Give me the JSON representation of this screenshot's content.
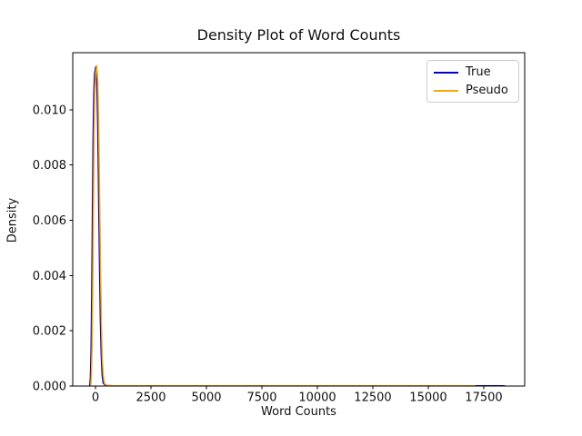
{
  "figure": {
    "background": "#ffffff",
    "frame_color": "#000000"
  },
  "chart_data": {
    "type": "line",
    "subtype": "kde-density",
    "title": "Density Plot of Word Counts",
    "xlabel": "Word Counts",
    "ylabel": "Density",
    "xlim": [
      -1025,
      19345
    ],
    "ylim": [
      0,
      0.012066
    ],
    "grid": false,
    "legend": {
      "position": "upper right",
      "entries": [
        "True",
        "Pseudo"
      ]
    },
    "x_ticks": [
      {
        "value": 0,
        "label": "0"
      },
      {
        "value": 2500,
        "label": "2500"
      },
      {
        "value": 5000,
        "label": "5000"
      },
      {
        "value": 7500,
        "label": "7500"
      },
      {
        "value": 10000,
        "label": "10000"
      },
      {
        "value": 12500,
        "label": "12500"
      },
      {
        "value": 15000,
        "label": "15000"
      },
      {
        "value": 17500,
        "label": "17500"
      }
    ],
    "y_ticks": [
      {
        "value": 0.0,
        "label": "0.000"
      },
      {
        "value": 0.002,
        "label": "0.002"
      },
      {
        "value": 0.004,
        "label": "0.004"
      },
      {
        "value": 0.006,
        "label": "0.006"
      },
      {
        "value": 0.008,
        "label": "0.008"
      },
      {
        "value": 0.01,
        "label": "0.010"
      }
    ],
    "series": [
      {
        "name": "True",
        "color": "#0000cd",
        "peak": {
          "x": 10,
          "y": 0.01155
        },
        "x_end": 18450,
        "points": [
          [
            -260,
            0.0
          ],
          [
            -230,
            0.0003
          ],
          [
            -200,
            0.0012
          ],
          [
            -170,
            0.0032
          ],
          [
            -140,
            0.006
          ],
          [
            -110,
            0.0088
          ],
          [
            -75,
            0.0106
          ],
          [
            -40,
            0.0113
          ],
          [
            10,
            0.01155
          ],
          [
            60,
            0.011
          ],
          [
            100,
            0.0095
          ],
          [
            140,
            0.007
          ],
          [
            180,
            0.0045
          ],
          [
            220,
            0.0024
          ],
          [
            260,
            0.0011
          ],
          [
            300,
            0.0004
          ],
          [
            350,
            0.0001
          ],
          [
            450,
            3e-05
          ],
          [
            700,
            1e-05
          ],
          [
            2000,
            1e-05
          ],
          [
            5000,
            1e-05
          ],
          [
            10000,
            1e-05
          ],
          [
            15000,
            1e-05
          ],
          [
            18450,
            1e-05
          ]
        ]
      },
      {
        "name": "Pseudo",
        "color": "#ffa500",
        "peak": {
          "x": 55,
          "y": 0.0116
        },
        "x_end": 17130,
        "points": [
          [
            -215,
            0.0
          ],
          [
            -185,
            0.0004
          ],
          [
            -155,
            0.0014
          ],
          [
            -125,
            0.0035
          ],
          [
            -95,
            0.0063
          ],
          [
            -65,
            0.009
          ],
          [
            -30,
            0.0107
          ],
          [
            5,
            0.0113
          ],
          [
            55,
            0.0116
          ],
          [
            105,
            0.011
          ],
          [
            145,
            0.0094
          ],
          [
            185,
            0.0069
          ],
          [
            225,
            0.0044
          ],
          [
            265,
            0.0023
          ],
          [
            305,
            0.001
          ],
          [
            350,
            0.0004
          ],
          [
            400,
            0.0001
          ],
          [
            500,
            3e-05
          ],
          [
            800,
            1e-05
          ],
          [
            2000,
            1e-05
          ],
          [
            5000,
            1e-05
          ],
          [
            10000,
            1e-05
          ],
          [
            15000,
            1e-05
          ],
          [
            17130,
            1e-05
          ]
        ]
      }
    ]
  }
}
